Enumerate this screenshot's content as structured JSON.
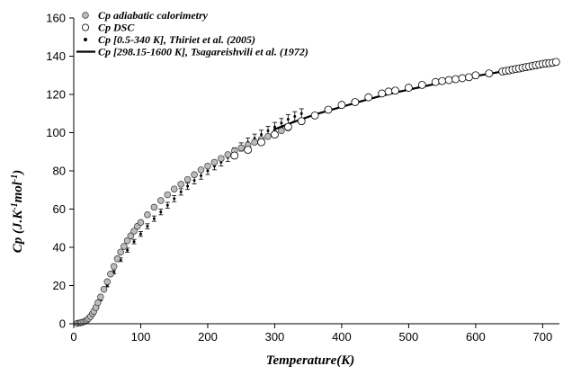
{
  "chart_data": {
    "type": "scatter",
    "xlabel": "Temperature(K)",
    "ylabel": "Cp (J.K-1mol-1)",
    "ylabel_parts": {
      "base": "Cp (J.K",
      "sup1": "-1",
      "mid": "mol",
      "sup2": "-1",
      "end": ")"
    },
    "xlim": [
      0,
      725
    ],
    "ylim": [
      0,
      160
    ],
    "x_ticks": [
      "0",
      "100",
      "200",
      "300",
      "400",
      "500",
      "600",
      "700"
    ],
    "y_ticks": [
      "0",
      "20",
      "40",
      "60",
      "80",
      "100",
      "120",
      "140",
      "160"
    ],
    "grid": false,
    "legend_position": "top-left",
    "series": [
      {
        "name": "Cp adiabatic calorimetry",
        "marker": "open-circle-gray",
        "x": [
          5,
          8,
          10,
          12,
          15,
          18,
          20,
          22,
          25,
          28,
          30,
          33,
          36,
          40,
          45,
          50,
          55,
          60,
          65,
          70,
          75,
          80,
          85,
          90,
          95,
          100,
          110,
          120,
          130,
          140,
          150,
          160,
          170,
          180,
          190,
          200,
          210,
          220,
          230,
          240,
          250,
          260,
          270,
          280,
          290,
          300,
          310,
          320
        ],
        "y": [
          0.2,
          0.4,
          0.5,
          0.7,
          1.0,
          1.5,
          2.0,
          2.7,
          3.8,
          5.3,
          6.5,
          8.5,
          11,
          14,
          18,
          22,
          26,
          30,
          34,
          37.5,
          40.5,
          43.5,
          46,
          48.5,
          51,
          53,
          57,
          61,
          64.5,
          67.5,
          70.5,
          73,
          75.5,
          78,
          80.5,
          82.5,
          84.5,
          86.5,
          88.5,
          90.5,
          92,
          93.5,
          95,
          96.5,
          98,
          99.5,
          101,
          102.5
        ]
      },
      {
        "name": "Cp DSC",
        "marker": "open-circle",
        "x": [
          240,
          260,
          280,
          300,
          320,
          340,
          360,
          380,
          400,
          420,
          440,
          460,
          470,
          480,
          500,
          520,
          540,
          550,
          560,
          570,
          580,
          590,
          600,
          620,
          640,
          645,
          650,
          655,
          660,
          665,
          670,
          675,
          680,
          685,
          690,
          695,
          700,
          705,
          710,
          715,
          720
        ],
        "y": [
          88,
          91,
          95,
          99,
          103,
          106,
          109,
          112,
          114.5,
          116,
          118.5,
          120.5,
          121.5,
          122,
          123.5,
          125,
          126.5,
          127,
          127.5,
          128,
          128.5,
          129,
          130,
          131,
          132,
          132.3,
          132.6,
          133,
          133.3,
          133.6,
          134,
          134.3,
          134.6,
          135,
          135.3,
          135.6,
          136,
          136.2,
          136.4,
          136.6,
          137
        ]
      },
      {
        "name": "Cp [0.5-340 K], Thiriet et al.  (2005)",
        "marker": "errorbar-dot",
        "x": [
          20,
          25,
          30,
          35,
          40,
          50,
          60,
          70,
          80,
          90,
          100,
          110,
          120,
          130,
          140,
          150,
          160,
          170,
          180,
          190,
          200,
          210,
          220,
          230,
          240,
          250,
          260,
          270,
          280,
          290,
          300,
          310,
          320,
          330,
          340
        ],
        "y": [
          1.5,
          3.5,
          6,
          9,
          12.5,
          20,
          27,
          33.5,
          38.5,
          43,
          47,
          51,
          55,
          58.5,
          62,
          65.5,
          69,
          72,
          75,
          77.5,
          80,
          82.5,
          84.5,
          87,
          90,
          92.5,
          95,
          97,
          99,
          101,
          103,
          105,
          107,
          108.5,
          110
        ]
      },
      {
        "name": "Cp [298.15-1600 K], Tsagareishvili et al. (1972)",
        "marker": "line",
        "x": [
          298.15,
          320,
          340,
          360,
          380,
          400,
          420,
          440,
          460,
          480,
          500,
          520,
          540,
          560,
          580,
          600,
          620,
          640,
          660,
          680,
          700,
          720
        ],
        "y": [
          101.5,
          104.5,
          107,
          109.5,
          111.5,
          113.5,
          115.5,
          117.5,
          119.3,
          121,
          122.5,
          124,
          125.5,
          127,
          128.3,
          129.6,
          130.8,
          132,
          133.2,
          134.3,
          135.4,
          136.5
        ]
      }
    ]
  }
}
